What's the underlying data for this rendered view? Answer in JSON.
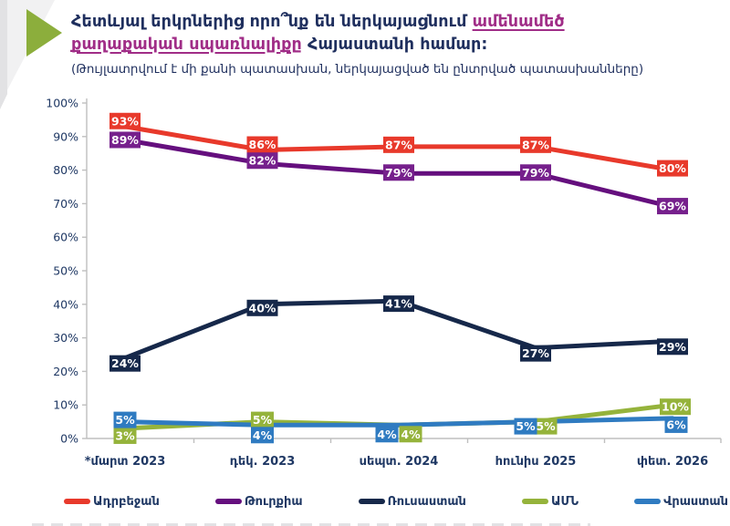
{
  "header": {
    "title_part1": "Հետևյալ երկրներից որո՞նք են ներկայացնում ",
    "title_highlight1": "ամենամեծ",
    "title_highlight2": "քաղաքական սպառնալիքը",
    "title_part2": " Հայաստանի համար:",
    "subtitle": "(Թույլատրվում է մի քանի պատասխան, ներկայացված են ընտրված պատասխանները)"
  },
  "colors": {
    "accent_green": "#8CAE3C",
    "title_navy": "#1F2F5E",
    "highlight_magenta": "#A02D87",
    "axis_gray": "#BFBFBF",
    "axis_text_navy": "#1F3864"
  },
  "chart_data": {
    "type": "line",
    "x": [
      "*մարտ 2023",
      "դեկ. 2023",
      "սեպտ. 2024",
      "հունիս 2025",
      "փետ. 2026"
    ],
    "y_ticks": [
      "0%",
      "10%",
      "20%",
      "30%",
      "40%",
      "50%",
      "60%",
      "70%",
      "80%",
      "90%",
      "100%"
    ],
    "ylim": [
      0,
      100
    ],
    "grid": false,
    "legend_position": "bottom",
    "series": [
      {
        "name": "Ադրբեջան",
        "color": "#E8392B",
        "values": [
          93,
          86,
          87,
          87,
          80
        ]
      },
      {
        "name": "Թուրքիա",
        "color": "#650F7E",
        "label_fill": "#76208C",
        "values": [
          89,
          82,
          79,
          79,
          69
        ]
      },
      {
        "name": "Ռուսաստան",
        "color": "#16284A",
        "values": [
          24,
          40,
          41,
          27,
          29
        ]
      },
      {
        "name": "ԱՄՆ",
        "color": "#95B33B",
        "values": [
          3,
          5,
          4,
          5,
          10
        ]
      },
      {
        "name": "Վրաստան",
        "color": "#2F7BC1",
        "values": [
          5,
          4,
          4,
          5,
          6
        ]
      }
    ]
  }
}
